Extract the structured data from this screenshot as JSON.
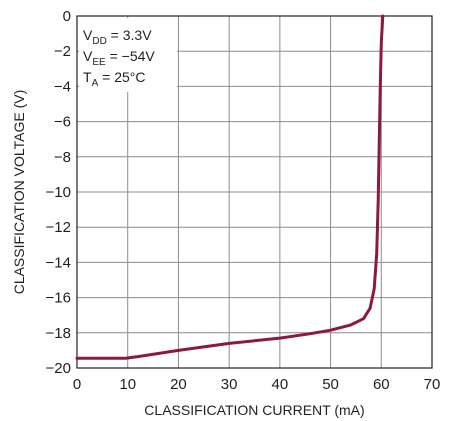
{
  "chart_data": {
    "type": "line",
    "xlabel": "CLASSIFICATION CURRENT (mA)",
    "ylabel": "CLASSIFICATION VOLTAGE (V)",
    "xlim": [
      0,
      70
    ],
    "ylim": [
      -20,
      0
    ],
    "xticks": [
      0,
      10,
      20,
      30,
      40,
      50,
      60,
      70
    ],
    "yticks": [
      0,
      -2,
      -4,
      -6,
      -8,
      -10,
      -12,
      -14,
      -16,
      -18,
      -20
    ],
    "grid": true,
    "colors": {
      "curve": "#8b1a3c",
      "grid": "#8c8c8c",
      "text": "#231f20"
    },
    "annotations": [
      {
        "main": "V",
        "sub": "DD",
        "rest": " = 3.3V"
      },
      {
        "main": "V",
        "sub": "EE",
        "rest": " = −54V"
      },
      {
        "main": "T",
        "sub": "A",
        "rest": " = 25°C"
      }
    ],
    "series": [
      {
        "x": [
          0,
          9.5,
          12,
          20,
          30,
          40,
          46,
          50,
          54,
          56.5,
          57.8,
          58.6,
          59.1,
          59.4,
          59.6,
          59.8,
          60,
          60.3
        ],
        "y": [
          -19.45,
          -19.45,
          -19.35,
          -19.0,
          -18.6,
          -18.3,
          -18.05,
          -17.85,
          -17.55,
          -17.2,
          -16.6,
          -15.5,
          -13.5,
          -10.5,
          -7,
          -4,
          -1.5,
          0
        ]
      }
    ]
  }
}
